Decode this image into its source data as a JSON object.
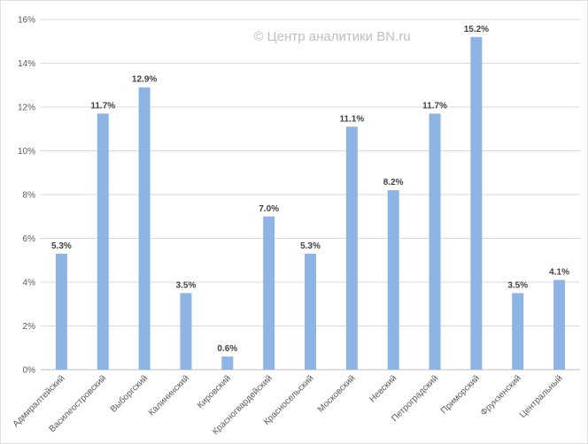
{
  "watermark": "© Центр аналитики BN.ru",
  "colors": {
    "bar": "#8EB4E3",
    "grid": "#D9D9D9",
    "axis_text": "#595959",
    "label_text": "#404040",
    "watermark": "#BFBFBF"
  },
  "chart_data": {
    "type": "bar",
    "title": "",
    "xlabel": "",
    "ylabel": "",
    "ylim": [
      0,
      16
    ],
    "yticks": [
      "0%",
      "2%",
      "4%",
      "6%",
      "8%",
      "10%",
      "12%",
      "14%",
      "16%"
    ],
    "grid": true,
    "categories": [
      "Адмиралтейский",
      "Василеостровский",
      "Выборгский",
      "Калининский",
      "Кировский",
      "Красногвардейский",
      "Красносельский",
      "Московский",
      "Невский",
      "Петроградский",
      "Приморский",
      "Фрунзенский",
      "Центральный"
    ],
    "values": [
      5.3,
      11.7,
      12.9,
      3.5,
      0.6,
      7.0,
      5.3,
      11.1,
      8.2,
      11.7,
      15.2,
      3.5,
      4.1
    ],
    "labels": [
      "5.3%",
      "11.7%",
      "12.9%",
      "3.5%",
      "0.6%",
      "7.0%",
      "5.3%",
      "11.1%",
      "8.2%",
      "11.7%",
      "15.2%",
      "3.5%",
      "4.1%"
    ]
  }
}
